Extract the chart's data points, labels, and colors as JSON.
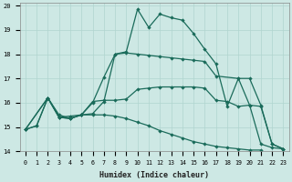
{
  "xlabel": "Humidex (Indice chaleur)",
  "xlim": [
    -0.5,
    23.5
  ],
  "ylim": [
    14,
    20.1
  ],
  "yticks": [
    14,
    15,
    16,
    17,
    18,
    19,
    20
  ],
  "xticks": [
    0,
    1,
    2,
    3,
    4,
    5,
    6,
    7,
    8,
    9,
    10,
    11,
    12,
    13,
    14,
    15,
    16,
    17,
    18,
    19,
    20,
    21,
    22,
    23
  ],
  "bg_color": "#cde8e4",
  "line_color": "#1a6b5a",
  "grid_color": "#b0d5cf",
  "series1_x": [
    0,
    1,
    2,
    3,
    4,
    5,
    6,
    7,
    8,
    9,
    10,
    11,
    12,
    13,
    14,
    15,
    16,
    17,
    18,
    19,
    20,
    21,
    22,
    23
  ],
  "series1_y": [
    14.9,
    15.05,
    16.2,
    15.4,
    15.35,
    15.5,
    15.55,
    16.05,
    18.0,
    18.1,
    19.85,
    19.1,
    19.65,
    19.5,
    19.4,
    18.85,
    18.2,
    17.6,
    15.85,
    17.0,
    15.9,
    14.3,
    14.15,
    14.1
  ],
  "series1_markers": [
    0,
    1,
    2,
    3,
    4,
    5,
    7,
    8,
    9,
    10,
    11,
    12,
    13,
    14,
    15,
    16,
    17,
    18,
    19,
    20,
    21,
    22,
    23
  ],
  "series2_x": [
    0,
    2,
    3,
    4,
    5,
    6,
    7,
    8,
    9,
    10,
    11,
    12,
    13,
    14,
    15,
    16,
    17,
    19,
    20,
    21,
    22,
    23
  ],
  "series2_y": [
    14.9,
    16.2,
    15.4,
    15.35,
    15.5,
    16.0,
    17.05,
    18.0,
    18.05,
    18.0,
    17.95,
    17.9,
    17.85,
    17.8,
    17.75,
    17.7,
    17.1,
    17.0,
    17.0,
    15.9,
    14.3,
    14.1
  ],
  "series3_x": [
    0,
    2,
    3,
    4,
    5,
    6,
    7,
    8,
    9,
    10,
    11,
    12,
    13,
    14,
    15,
    16,
    17,
    18,
    19,
    20,
    21,
    22,
    23
  ],
  "series3_y": [
    14.9,
    16.2,
    15.4,
    15.45,
    15.5,
    16.05,
    16.1,
    16.1,
    16.15,
    16.55,
    16.6,
    16.65,
    16.65,
    16.65,
    16.65,
    16.6,
    16.1,
    16.05,
    15.85,
    15.9,
    15.85,
    14.3,
    14.1
  ],
  "series4_x": [
    0,
    1,
    2,
    3,
    4,
    5,
    6,
    7,
    8,
    9,
    10,
    11,
    12,
    13,
    14,
    15,
    16,
    17,
    18,
    19,
    20,
    21
  ],
  "series4_y": [
    14.9,
    15.05,
    16.2,
    15.5,
    15.35,
    15.5,
    15.5,
    15.5,
    15.45,
    15.35,
    15.2,
    15.05,
    14.85,
    14.7,
    14.55,
    14.4,
    14.3,
    14.2,
    14.15,
    14.1,
    14.05,
    14.05
  ]
}
